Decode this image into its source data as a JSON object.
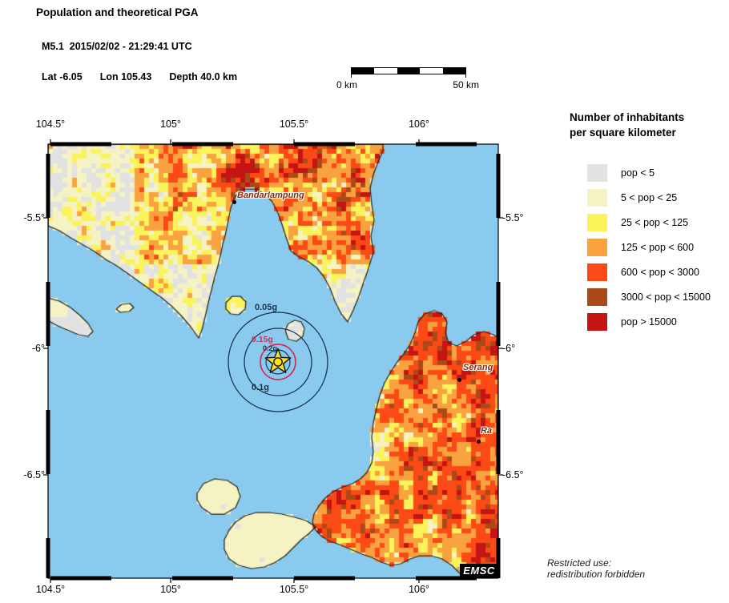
{
  "header": {
    "title": "Population and theoretical PGA",
    "magnitude": "M5.1",
    "datetime": "2015/02/02 - 21:29:41 UTC",
    "lat": "Lat -6.05",
    "lon": "Lon 105.43",
    "depth": "Depth  40.0 km"
  },
  "scale_bar": {
    "start_label": "0 km",
    "end_label": "50 km"
  },
  "map": {
    "sea_color": "#89caee",
    "axis": {
      "top_labels": [
        "104.5°",
        "105°",
        "105.5°",
        "106°"
      ],
      "bottom_labels": [
        "104.5°",
        "105°",
        "105.5°",
        "106°"
      ],
      "left_labels": [
        "-5.5°",
        "-6°",
        "-6.5°"
      ],
      "right_labels": [
        "-5.5°",
        "-6°",
        "-6.5°"
      ]
    },
    "pga_rings": [
      {
        "label": "0.05g",
        "color": "#1b3450"
      },
      {
        "label": "0.1g",
        "color": "#1b3450"
      },
      {
        "label": "0.15g",
        "color": "#d03058"
      },
      {
        "label": "0.2g",
        "color": "#1b3450"
      }
    ],
    "cities": [
      {
        "name": "Bandarlampung"
      },
      {
        "name": "Serang"
      },
      {
        "name": "Ra"
      }
    ],
    "logo": "EMSC"
  },
  "legend": {
    "title_line1": "Number of inhabitants",
    "title_line2": "per square kilometer",
    "items": [
      {
        "label": "pop < 5",
        "color": "#e2e2e2"
      },
      {
        "label": "5 < pop < 25",
        "color": "#f5f2c3"
      },
      {
        "label": "25 < pop < 125",
        "color": "#fbf35a"
      },
      {
        "label": "125 < pop < 600",
        "color": "#f9a240"
      },
      {
        "label": "600 < pop < 3000",
        "color": "#fb4a15"
      },
      {
        "label": "3000 < pop < 15000",
        "color": "#ab4a16"
      },
      {
        "label": "pop > 15000",
        "color": "#c41414"
      }
    ]
  },
  "footer": {
    "restricted_line1": "Restricted use:",
    "restricted_line2": "redistribution forbidden"
  }
}
